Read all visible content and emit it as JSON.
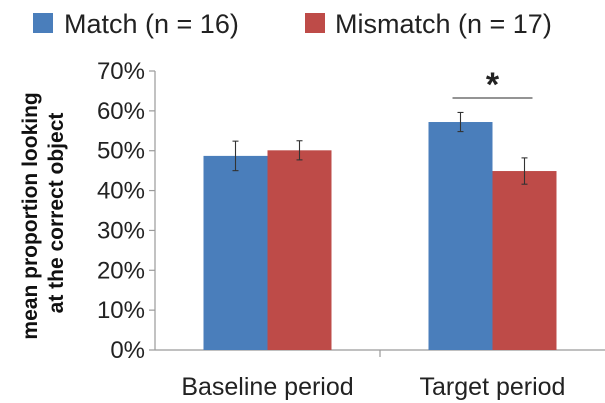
{
  "chart_data": {
    "type": "bar",
    "categories": [
      "Baseline period",
      "Target period"
    ],
    "series": [
      {
        "name": "Match (n = 16)",
        "values": [
          48.7,
          57.2
        ],
        "errors": [
          3.7,
          2.4
        ],
        "color": "#4a7ebb"
      },
      {
        "name": "Mismatch (n = 17)",
        "values": [
          50.1,
          44.9
        ],
        "errors": [
          2.4,
          3.3
        ],
        "color": "#be4b48"
      }
    ],
    "ylabel_lines": [
      "mean proportion looking",
      "at the correct object"
    ],
    "ylim": [
      0,
      70
    ],
    "yticks": [
      0,
      10,
      20,
      30,
      40,
      50,
      60,
      70
    ],
    "ytick_labels": [
      "0%",
      "10%",
      "20%",
      "30%",
      "40%",
      "50%",
      "60%",
      "70%"
    ],
    "grid": false,
    "legend": "top",
    "annotations": [
      {
        "text": "*",
        "category": "Target period",
        "type": "significance"
      }
    ]
  }
}
